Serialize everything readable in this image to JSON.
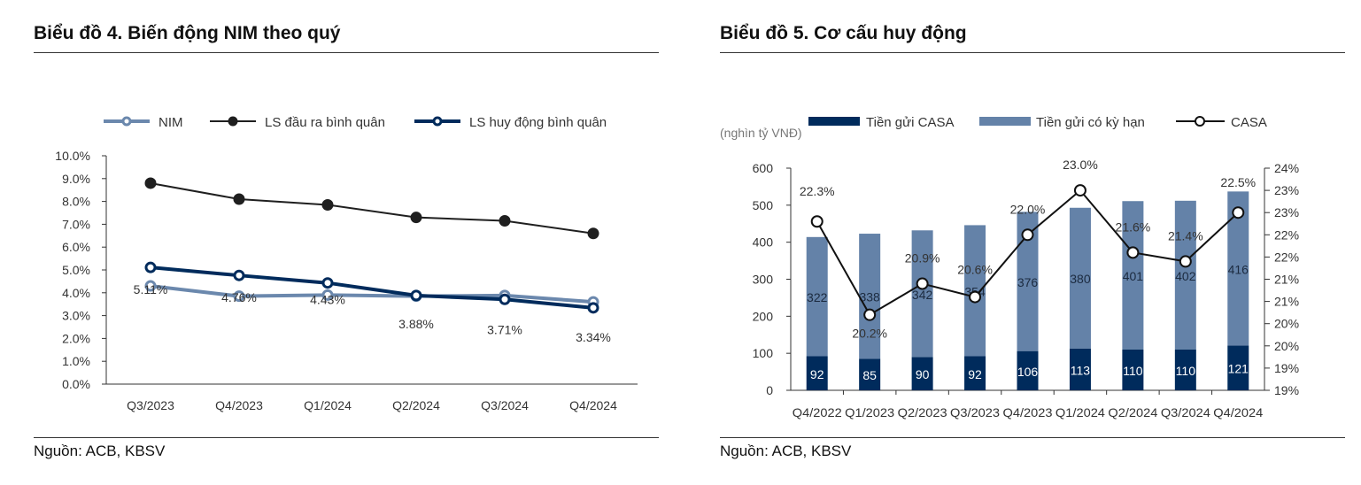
{
  "left": {
    "title": "Biểu đồ 4. Biến động NIM theo quý",
    "source": "Nguồn: ACB, KBSV"
  },
  "right": {
    "title": "Biểu đồ 5. Cơ cấu huy động",
    "source": "Nguồn: ACB, KBSV"
  },
  "colors": {
    "navy": "#002b5c",
    "steel": "#6482a8",
    "black": "#1f1f1f"
  },
  "chart_data": [
    {
      "type": "line",
      "title": "Biểu đồ 4. Biến động NIM theo quý",
      "categories": [
        "Q3/2023",
        "Q4/2023",
        "Q1/2024",
        "Q2/2024",
        "Q3/2024",
        "Q4/2024"
      ],
      "ylim": [
        0,
        10
      ],
      "yticks": [
        "0.0%",
        "1.0%",
        "2.0%",
        "3.0%",
        "4.0%",
        "5.0%",
        "6.0%",
        "7.0%",
        "8.0%",
        "9.0%",
        "10.0%"
      ],
      "legend_position": "top",
      "series": [
        {
          "name": "NIM",
          "values": [
            4.3,
            3.85,
            3.9,
            3.85,
            3.88,
            3.6
          ]
        },
        {
          "name": "LS đầu ra bình quân",
          "values": [
            8.8,
            8.1,
            7.85,
            7.3,
            7.15,
            6.6
          ]
        },
        {
          "name": "LS huy động bình quân",
          "values": [
            5.11,
            4.76,
            4.43,
            3.88,
            3.71,
            3.34
          ],
          "labels": [
            "5.11%",
            "4.76%",
            "4.43%",
            "3.88%",
            "3.71%",
            "3.34%"
          ]
        }
      ]
    },
    {
      "type": "bar",
      "title": "Biểu đồ 5. Cơ cấu huy động",
      "unit_label": "(nghìn tỷ VNĐ)",
      "categories": [
        "Q4/2022",
        "Q1/2023",
        "Q2/2023",
        "Q3/2023",
        "Q4/2023",
        "Q1/2024",
        "Q2/2024",
        "Q3/2024",
        "Q4/2024"
      ],
      "ylim": [
        0,
        600
      ],
      "yticks": [
        "0",
        "100",
        "200",
        "300",
        "400",
        "500",
        "600"
      ],
      "y2lim": [
        18.5,
        23.5
      ],
      "y2ticks": [
        "19%",
        "19%",
        "20%",
        "20%",
        "21%",
        "21%",
        "22%",
        "22%",
        "23%",
        "23%",
        "24%"
      ],
      "legend_position": "top",
      "series": [
        {
          "name": "Tiền gửi CASA",
          "stacked": true,
          "values": [
            92,
            85,
            90,
            92,
            106,
            113,
            110,
            110,
            121
          ]
        },
        {
          "name": "Tiền gửi có kỳ hạn",
          "stacked": true,
          "values": [
            322,
            338,
            342,
            354,
            376,
            380,
            401,
            402,
            416
          ]
        },
        {
          "name": "CASA",
          "axis": "right",
          "type": "line",
          "values": [
            22.3,
            20.2,
            20.9,
            20.6,
            22.0,
            23.0,
            21.6,
            21.4,
            22.5
          ],
          "labels": [
            "22.3%",
            "20.2%",
            "20.9%",
            "20.6%",
            "22.0%",
            "23.0%",
            "21.6%",
            "21.4%",
            "22.5%"
          ]
        }
      ]
    }
  ]
}
